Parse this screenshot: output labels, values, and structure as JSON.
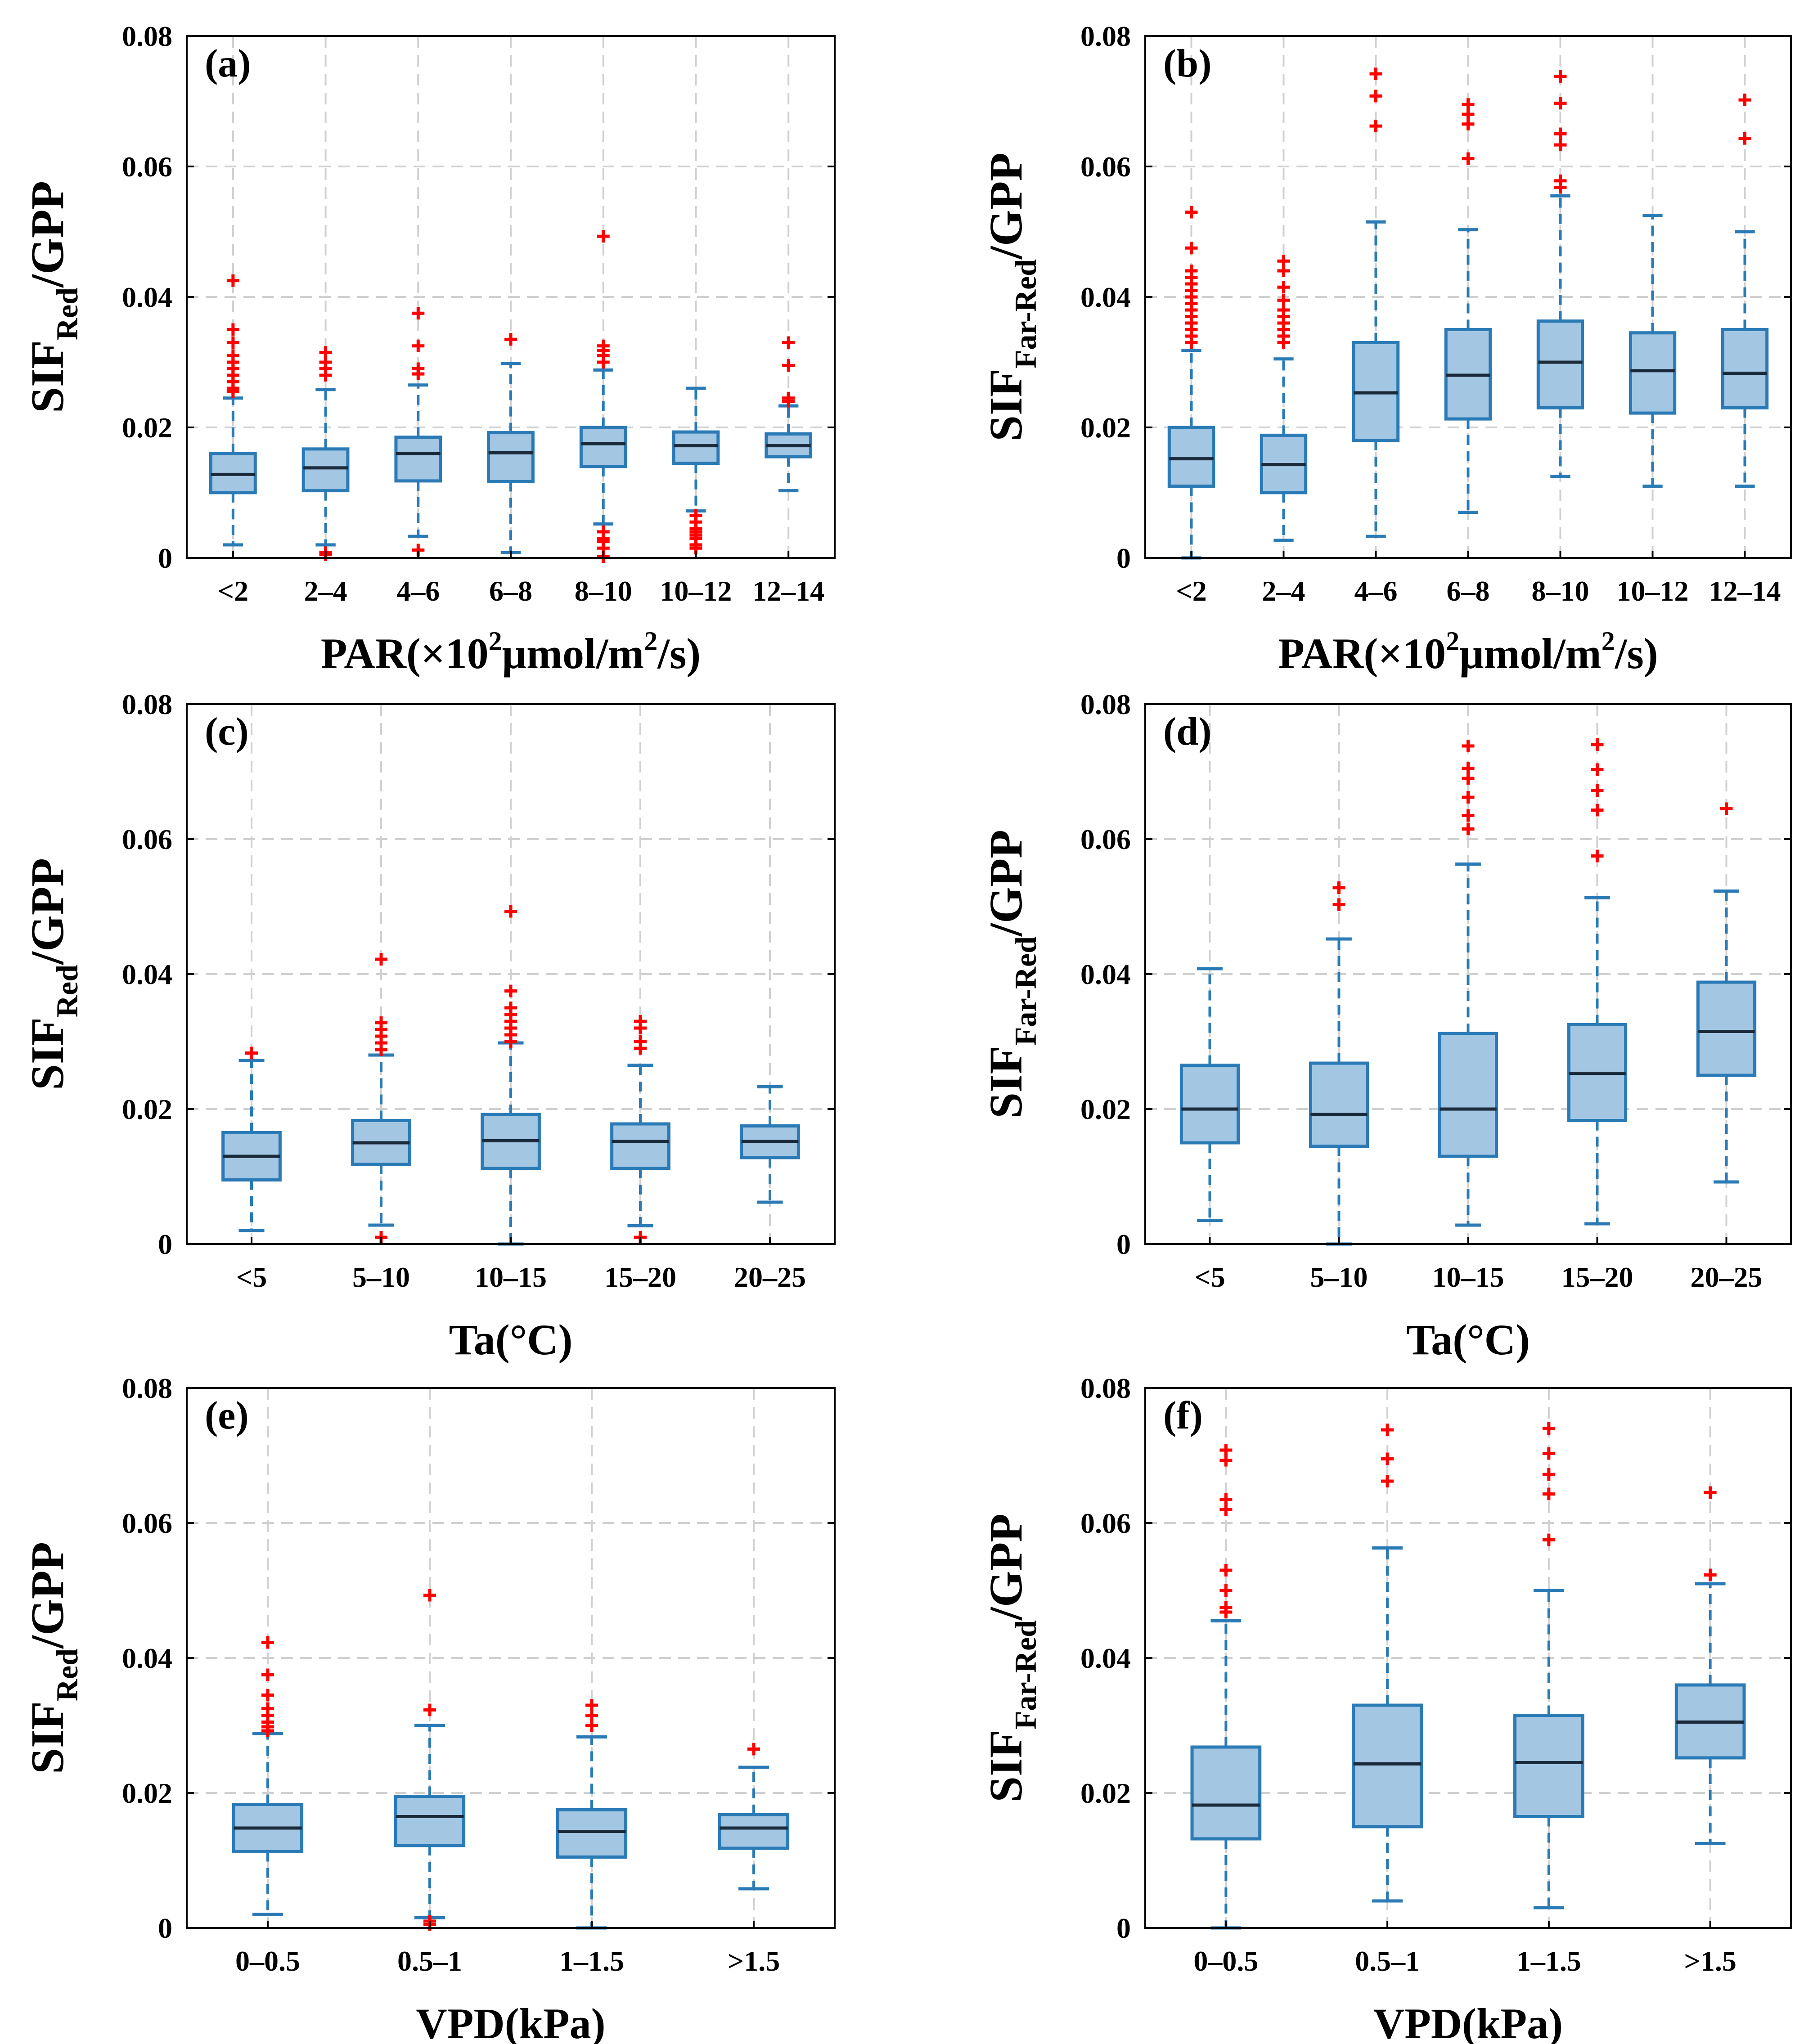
{
  "colors": {
    "box_fill": "#a3c6e3",
    "box_edge": "#2a7ab6",
    "median": "#1a2a3a",
    "outlier": "#ff0000",
    "grid": "#d0d0d0",
    "axis": "#000000"
  },
  "chart_data": [
    {
      "panel": "(a)",
      "type": "box",
      "response": "Red",
      "title": "",
      "ylim": [
        0,
        0.08
      ],
      "yticks": [
        "0",
        "0.02",
        "0.04",
        "0.06",
        "0.08"
      ],
      "ylabel": {
        "main": "SIF",
        "sub": "Red",
        "tail": "/GPP"
      },
      "xlabel": {
        "pre": "PAR(×10",
        "sup1": "2",
        "mid": "μmol/m",
        "sup2": "2",
        "post": "/s)"
      },
      "categories": [
        "<2",
        "2–4",
        "4–6",
        "6–8",
        "8–10",
        "10–12",
        "12–14"
      ],
      "boxes": [
        {
          "whislo": 0.002,
          "q1": 0.01,
          "med": 0.0128,
          "q3": 0.016,
          "whishi": 0.0245,
          "fliers": [
            0.0425,
            0.035,
            0.033,
            0.031,
            0.03,
            0.029,
            0.028,
            0.027,
            0.026,
            0.0255
          ]
        },
        {
          "whislo": 0.002,
          "q1": 0.0103,
          "med": 0.0138,
          "q3": 0.0167,
          "whishi": 0.0258,
          "fliers": [
            0.0315,
            0.03,
            0.029,
            0.028,
            0.0008,
            0.0005
          ]
        },
        {
          "whislo": 0.0033,
          "q1": 0.0118,
          "med": 0.016,
          "q3": 0.0185,
          "whishi": 0.0265,
          "fliers": [
            0.0375,
            0.0325,
            0.029,
            0.0282,
            0.0012
          ]
        },
        {
          "whislo": 0.0008,
          "q1": 0.0117,
          "med": 0.0161,
          "q3": 0.0192,
          "whishi": 0.0298,
          "fliers": [
            0.0335
          ]
        },
        {
          "whislo": 0.0052,
          "q1": 0.014,
          "med": 0.0175,
          "q3": 0.02,
          "whishi": 0.0288,
          "fliers": [
            0.0493,
            0.0325,
            0.0318,
            0.031,
            0.03,
            0.004,
            0.003,
            0.0025,
            0.0015,
            0.0002
          ]
        },
        {
          "whislo": 0.0072,
          "q1": 0.0145,
          "med": 0.0172,
          "q3": 0.0193,
          "whishi": 0.026,
          "fliers": [
            0.0065,
            0.0055,
            0.0045,
            0.004,
            0.0035,
            0.003,
            0.002,
            0.0015
          ]
        },
        {
          "whislo": 0.0103,
          "q1": 0.0155,
          "med": 0.0172,
          "q3": 0.019,
          "whishi": 0.0233,
          "fliers": [
            0.033,
            0.0295,
            0.0245,
            0.024
          ]
        }
      ]
    },
    {
      "panel": "(b)",
      "type": "box",
      "response": "Far-Red",
      "title": "",
      "ylim": [
        0,
        0.08
      ],
      "yticks": [
        "0",
        "0.02",
        "0.04",
        "0.06",
        "0.08"
      ],
      "ylabel": {
        "main": "SIF",
        "sub": "Far-Red",
        "tail": "/GPP"
      },
      "xlabel": {
        "pre": "PAR(×10",
        "sup1": "2",
        "mid": "μmol/m",
        "sup2": "2",
        "post": "/s)"
      },
      "categories": [
        "<2",
        "2–4",
        "4–6",
        "6–8",
        "8–10",
        "10–12",
        "12–14"
      ],
      "boxes": [
        {
          "whislo": 0.0,
          "q1": 0.011,
          "med": 0.0152,
          "q3": 0.02,
          "whishi": 0.0318,
          "fliers": [
            0.053,
            0.0475,
            0.044,
            0.043,
            0.042,
            0.041,
            0.04,
            0.039,
            0.038,
            0.037,
            0.036,
            0.035,
            0.034,
            0.033
          ]
        },
        {
          "whislo": 0.0027,
          "q1": 0.01,
          "med": 0.0143,
          "q3": 0.0188,
          "whishi": 0.0305,
          "fliers": [
            0.0455,
            0.044,
            0.0415,
            0.0395,
            0.038,
            0.037,
            0.036,
            0.035,
            0.034,
            0.033
          ]
        },
        {
          "whislo": 0.0033,
          "q1": 0.018,
          "med": 0.0253,
          "q3": 0.033,
          "whishi": 0.0515,
          "fliers": [
            0.0742,
            0.0708,
            0.0662
          ]
        },
        {
          "whislo": 0.007,
          "q1": 0.0213,
          "med": 0.028,
          "q3": 0.035,
          "whishi": 0.0503,
          "fliers": [
            0.0695,
            0.068,
            0.0665,
            0.0612
          ]
        },
        {
          "whislo": 0.0125,
          "q1": 0.023,
          "med": 0.03,
          "q3": 0.0363,
          "whishi": 0.0555,
          "fliers": [
            0.0738,
            0.0697,
            0.065,
            0.0633,
            0.0578,
            0.0568
          ]
        },
        {
          "whislo": 0.011,
          "q1": 0.0222,
          "med": 0.0287,
          "q3": 0.0345,
          "whishi": 0.0525,
          "fliers": []
        },
        {
          "whislo": 0.011,
          "q1": 0.023,
          "med": 0.0283,
          "q3": 0.035,
          "whishi": 0.05,
          "fliers": [
            0.0702,
            0.0643
          ]
        }
      ]
    },
    {
      "panel": "(c)",
      "type": "box",
      "response": "Red",
      "title": "",
      "ylim": [
        0,
        0.08
      ],
      "yticks": [
        "0",
        "0.02",
        "0.04",
        "0.06",
        "0.08"
      ],
      "ylabel": {
        "main": "SIF",
        "sub": "Red",
        "tail": "/GPP"
      },
      "xlabel": {
        "pre": "Ta(°C)"
      },
      "categories": [
        "<5",
        "5–10",
        "10–15",
        "15–20",
        "20–25"
      ],
      "boxes": [
        {
          "whislo": 0.002,
          "q1": 0.0095,
          "med": 0.013,
          "q3": 0.0165,
          "whishi": 0.0272,
          "fliers": [
            0.0283
          ]
        },
        {
          "whislo": 0.0028,
          "q1": 0.0118,
          "med": 0.015,
          "q3": 0.0183,
          "whishi": 0.028,
          "fliers": [
            0.0422,
            0.0328,
            0.0318,
            0.0308,
            0.0298,
            0.0288,
            0.001
          ]
        },
        {
          "whislo": 0.0,
          "q1": 0.0112,
          "med": 0.0153,
          "q3": 0.0192,
          "whishi": 0.0298,
          "fliers": [
            0.0493,
            0.0375,
            0.035,
            0.034,
            0.033,
            0.032,
            0.031,
            0.03
          ]
        },
        {
          "whislo": 0.0027,
          "q1": 0.0112,
          "med": 0.0152,
          "q3": 0.0178,
          "whishi": 0.0265,
          "fliers": [
            0.033,
            0.032,
            0.03,
            0.029,
            0.001
          ]
        },
        {
          "whislo": 0.0062,
          "q1": 0.0128,
          "med": 0.0152,
          "q3": 0.0175,
          "whishi": 0.0233,
          "fliers": []
        }
      ]
    },
    {
      "panel": "(d)",
      "type": "box",
      "response": "Far-Red",
      "title": "",
      "ylim": [
        0,
        0.08
      ],
      "yticks": [
        "0",
        "0.02",
        "0.04",
        "0.06",
        "0.08"
      ],
      "ylabel": {
        "main": "SIF",
        "sub": "Far-Red",
        "tail": "/GPP"
      },
      "xlabel": {
        "pre": "Ta(°C)"
      },
      "categories": [
        "<5",
        "5–10",
        "10–15",
        "15–20",
        "20–25"
      ],
      "boxes": [
        {
          "whislo": 0.0035,
          "q1": 0.015,
          "med": 0.02,
          "q3": 0.0265,
          "whishi": 0.0408,
          "fliers": []
        },
        {
          "whislo": 0.0,
          "q1": 0.0145,
          "med": 0.0192,
          "q3": 0.0268,
          "whishi": 0.0452,
          "fliers": [
            0.0528,
            0.0503
          ]
        },
        {
          "whislo": 0.0028,
          "q1": 0.013,
          "med": 0.02,
          "q3": 0.0312,
          "whishi": 0.0563,
          "fliers": [
            0.0738,
            0.0705,
            0.069,
            0.0662,
            0.0635,
            0.0615
          ]
        },
        {
          "whislo": 0.003,
          "q1": 0.0183,
          "med": 0.0253,
          "q3": 0.0325,
          "whishi": 0.0513,
          "fliers": [
            0.074,
            0.0703,
            0.0672,
            0.0643,
            0.0575
          ]
        },
        {
          "whislo": 0.0092,
          "q1": 0.025,
          "med": 0.0315,
          "q3": 0.0388,
          "whishi": 0.0523,
          "fliers": [
            0.0645
          ]
        }
      ]
    },
    {
      "panel": "(e)",
      "type": "box",
      "response": "Red",
      "title": "",
      "ylim": [
        0,
        0.08
      ],
      "yticks": [
        "0",
        "0.02",
        "0.04",
        "0.06",
        "0.08"
      ],
      "ylabel": {
        "main": "SIF",
        "sub": "Red",
        "tail": "/GPP"
      },
      "xlabel": {
        "pre": "VPD(kPa)"
      },
      "categories": [
        "0–0.5",
        "0.5–1",
        "1–1.5",
        ">1.5"
      ],
      "boxes": [
        {
          "whislo": 0.002,
          "q1": 0.0113,
          "med": 0.0148,
          "q3": 0.0183,
          "whishi": 0.0288,
          "fliers": [
            0.0423,
            0.0375,
            0.0345,
            0.0325,
            0.0315,
            0.0305,
            0.0298,
            0.0292
          ]
        },
        {
          "whislo": 0.0015,
          "q1": 0.0122,
          "med": 0.0165,
          "q3": 0.0195,
          "whishi": 0.03,
          "fliers": [
            0.0493,
            0.0323,
            0.001,
            0.0005
          ]
        },
        {
          "whislo": 0.0,
          "q1": 0.0105,
          "med": 0.0143,
          "q3": 0.0175,
          "whishi": 0.0283,
          "fliers": [
            0.033,
            0.0315,
            0.03
          ]
        },
        {
          "whislo": 0.0058,
          "q1": 0.0118,
          "med": 0.0148,
          "q3": 0.0168,
          "whishi": 0.0238,
          "fliers": [
            0.0265
          ]
        }
      ]
    },
    {
      "panel": "(f)",
      "type": "box",
      "response": "Far-Red",
      "title": "",
      "ylim": [
        0,
        0.08
      ],
      "yticks": [
        "0",
        "0.02",
        "0.04",
        "0.06",
        "0.08"
      ],
      "ylabel": {
        "main": "SIF",
        "sub": "Far-Red",
        "tail": "/GPP"
      },
      "xlabel": {
        "pre": "VPD(kPa)"
      },
      "categories": [
        "0–0.5",
        "0.5–1",
        "1–1.5",
        ">1.5"
      ],
      "boxes": [
        {
          "whislo": 0.0,
          "q1": 0.0132,
          "med": 0.0182,
          "q3": 0.0268,
          "whishi": 0.0455,
          "fliers": [
            0.0708,
            0.0693,
            0.0635,
            0.062,
            0.053,
            0.05,
            0.0475,
            0.0468
          ]
        },
        {
          "whislo": 0.004,
          "q1": 0.015,
          "med": 0.0243,
          "q3": 0.033,
          "whishi": 0.0563,
          "fliers": [
            0.0738,
            0.0695,
            0.0662
          ]
        },
        {
          "whislo": 0.003,
          "q1": 0.0165,
          "med": 0.0245,
          "q3": 0.0315,
          "whishi": 0.05,
          "fliers": [
            0.074,
            0.0703,
            0.0672,
            0.0643,
            0.0575
          ]
        },
        {
          "whislo": 0.0125,
          "q1": 0.0252,
          "med": 0.0305,
          "q3": 0.036,
          "whishi": 0.051,
          "fliers": [
            0.0645,
            0.0523
          ]
        }
      ]
    }
  ]
}
